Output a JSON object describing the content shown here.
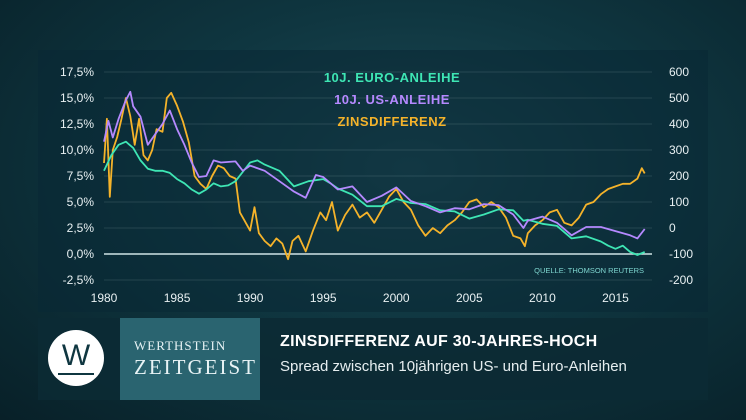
{
  "chart_data": {
    "type": "line",
    "legend": [
      {
        "label": "10J. EURO-ANLEIHE",
        "color": "#3ee6b4"
      },
      {
        "label": "10J. US-ANLEIHE",
        "color": "#b589ff"
      },
      {
        "label": "ZINSDIFFERENZ",
        "color": "#f5b32a"
      }
    ],
    "y_left": {
      "ticks": [
        "17,5%",
        "15,0%",
        "12,5%",
        "10,0%",
        "7,5%",
        "5,0%",
        "2,5%",
        "0,0%",
        "-2,5%"
      ],
      "values": [
        17.5,
        15,
        12.5,
        10,
        7.5,
        5,
        2.5,
        0,
        -2.5
      ],
      "range": [
        -2.5,
        17.5
      ]
    },
    "y_right": {
      "ticks": [
        "600",
        "500",
        "400",
        "300",
        "200",
        "100",
        "0",
        "-100",
        "-200"
      ],
      "values": [
        600,
        500,
        400,
        300,
        200,
        100,
        0,
        -100,
        -200
      ],
      "range": [
        -200,
        600
      ]
    },
    "x_ticks": [
      "1980",
      "1985",
      "1990",
      "1995",
      "2000",
      "2005",
      "2010",
      "2015"
    ],
    "x_values": [
      1980,
      1985,
      1990,
      1995,
      2000,
      2005,
      2010,
      2015
    ],
    "x_range": [
      1980,
      2017.5
    ],
    "source": "QUELLE: THOMSON REUTERS",
    "series": [
      {
        "name": "10J. EURO-ANLEIHE",
        "axis": "left",
        "color": "#3ee6b4",
        "points": [
          [
            1980,
            8.0
          ],
          [
            1980.5,
            9.5
          ],
          [
            1981,
            10.5
          ],
          [
            1981.5,
            10.8
          ],
          [
            1982,
            10.2
          ],
          [
            1982.5,
            9.0
          ],
          [
            1983,
            8.2
          ],
          [
            1983.5,
            8.0
          ],
          [
            1984,
            8.0
          ],
          [
            1984.5,
            7.8
          ],
          [
            1985,
            7.2
          ],
          [
            1985.5,
            6.8
          ],
          [
            1986,
            6.2
          ],
          [
            1986.5,
            5.8
          ],
          [
            1987,
            6.2
          ],
          [
            1987.5,
            6.8
          ],
          [
            1988,
            6.5
          ],
          [
            1988.5,
            6.6
          ],
          [
            1989,
            7.0
          ],
          [
            1990,
            8.8
          ],
          [
            1990.5,
            9.0
          ],
          [
            1991,
            8.6
          ],
          [
            1992,
            8.0
          ],
          [
            1993,
            6.5
          ],
          [
            1994,
            7.0
          ],
          [
            1995,
            7.2
          ],
          [
            1995.5,
            6.8
          ],
          [
            1996,
            6.3
          ],
          [
            1997,
            5.7
          ],
          [
            1998,
            4.6
          ],
          [
            1999,
            4.6
          ],
          [
            2000,
            5.3
          ],
          [
            2001,
            4.9
          ],
          [
            2002,
            4.8
          ],
          [
            2003,
            4.2
          ],
          [
            2004,
            4.1
          ],
          [
            2005,
            3.4
          ],
          [
            2006,
            3.8
          ],
          [
            2007,
            4.3
          ],
          [
            2008,
            4.2
          ],
          [
            2008.7,
            3.2
          ],
          [
            2009,
            3.3
          ],
          [
            2010,
            2.9
          ],
          [
            2011,
            2.7
          ],
          [
            2012,
            1.5
          ],
          [
            2013,
            1.7
          ],
          [
            2014,
            1.2
          ],
          [
            2014.5,
            0.8
          ],
          [
            2015,
            0.5
          ],
          [
            2015.5,
            0.8
          ],
          [
            2016,
            0.2
          ],
          [
            2016.5,
            -0.1
          ],
          [
            2017,
            0.2
          ]
        ]
      },
      {
        "name": "10J. US-ANLEIHE",
        "axis": "left",
        "color": "#b589ff",
        "points": [
          [
            1980,
            10.8
          ],
          [
            1980.3,
            12.8
          ],
          [
            1980.6,
            11.2
          ],
          [
            1981,
            13.0
          ],
          [
            1981.5,
            14.8
          ],
          [
            1981.8,
            15.6
          ],
          [
            1982,
            14.2
          ],
          [
            1982.5,
            13.2
          ],
          [
            1983,
            10.5
          ],
          [
            1983.5,
            11.5
          ],
          [
            1984,
            12.5
          ],
          [
            1984.5,
            13.8
          ],
          [
            1985,
            12.0
          ],
          [
            1985.5,
            10.5
          ],
          [
            1986,
            8.8
          ],
          [
            1986.5,
            7.4
          ],
          [
            1987,
            7.5
          ],
          [
            1987.5,
            9.0
          ],
          [
            1988,
            8.8
          ],
          [
            1989,
            8.9
          ],
          [
            1989.5,
            8.0
          ],
          [
            1990,
            8.5
          ],
          [
            1991,
            8.0
          ],
          [
            1992,
            7.0
          ],
          [
            1993,
            6.0
          ],
          [
            1993.8,
            5.4
          ],
          [
            1994.5,
            7.6
          ],
          [
            1995,
            7.4
          ],
          [
            1996,
            6.2
          ],
          [
            1997,
            6.5
          ],
          [
            1998,
            5.0
          ],
          [
            1999,
            5.6
          ],
          [
            2000,
            6.4
          ],
          [
            2001,
            5.1
          ],
          [
            2002,
            4.6
          ],
          [
            2003,
            4.0
          ],
          [
            2004,
            4.4
          ],
          [
            2005,
            4.3
          ],
          [
            2006,
            4.8
          ],
          [
            2007,
            4.7
          ],
          [
            2008,
            3.8
          ],
          [
            2008.7,
            2.5
          ],
          [
            2009,
            3.2
          ],
          [
            2010,
            3.6
          ],
          [
            2011,
            3.0
          ],
          [
            2012,
            1.8
          ],
          [
            2013,
            2.6
          ],
          [
            2014,
            2.6
          ],
          [
            2015,
            2.2
          ],
          [
            2016,
            1.8
          ],
          [
            2016.5,
            1.5
          ],
          [
            2017,
            2.4
          ]
        ]
      },
      {
        "name": "ZINSDIFFERENZ",
        "axis": "right",
        "color": "#f5b32a",
        "points": [
          [
            1980,
            250
          ],
          [
            1980.2,
            420
          ],
          [
            1980.4,
            120
          ],
          [
            1980.6,
            300
          ],
          [
            1980.9,
            350
          ],
          [
            1981.2,
            420
          ],
          [
            1981.5,
            500
          ],
          [
            1981.8,
            430
          ],
          [
            1982.1,
            320
          ],
          [
            1982.4,
            420
          ],
          [
            1982.7,
            280
          ],
          [
            1983,
            260
          ],
          [
            1983.3,
            300
          ],
          [
            1983.6,
            380
          ],
          [
            1984,
            370
          ],
          [
            1984.3,
            500
          ],
          [
            1984.6,
            520
          ],
          [
            1985,
            470
          ],
          [
            1985.4,
            410
          ],
          [
            1985.8,
            330
          ],
          [
            1986.2,
            200
          ],
          [
            1986.6,
            170
          ],
          [
            1987,
            150
          ],
          [
            1987.4,
            200
          ],
          [
            1987.8,
            240
          ],
          [
            1988.2,
            230
          ],
          [
            1988.6,
            200
          ],
          [
            1989,
            190
          ],
          [
            1989.3,
            60
          ],
          [
            1989.6,
            30
          ],
          [
            1990,
            -10
          ],
          [
            1990.3,
            80
          ],
          [
            1990.6,
            -20
          ],
          [
            1991,
            -50
          ],
          [
            1991.4,
            -70
          ],
          [
            1991.8,
            -40
          ],
          [
            1992.2,
            -60
          ],
          [
            1992.6,
            -120
          ],
          [
            1992.9,
            -50
          ],
          [
            1993.3,
            -30
          ],
          [
            1993.8,
            -90
          ],
          [
            1994.3,
            -10
          ],
          [
            1994.8,
            60
          ],
          [
            1995.2,
            30
          ],
          [
            1995.6,
            100
          ],
          [
            1996,
            -10
          ],
          [
            1996.5,
            50
          ],
          [
            1997,
            90
          ],
          [
            1997.5,
            40
          ],
          [
            1998,
            60
          ],
          [
            1998.5,
            20
          ],
          [
            1999,
            70
          ],
          [
            1999.5,
            120
          ],
          [
            2000,
            150
          ],
          [
            2000.5,
            100
          ],
          [
            2001,
            70
          ],
          [
            2001.5,
            10
          ],
          [
            2002,
            -30
          ],
          [
            2002.5,
            0
          ],
          [
            2003,
            -20
          ],
          [
            2003.5,
            10
          ],
          [
            2004,
            30
          ],
          [
            2004.5,
            60
          ],
          [
            2005,
            100
          ],
          [
            2005.5,
            110
          ],
          [
            2006,
            80
          ],
          [
            2006.5,
            100
          ],
          [
            2007,
            80
          ],
          [
            2007.5,
            40
          ],
          [
            2008,
            -30
          ],
          [
            2008.5,
            -40
          ],
          [
            2008.8,
            -70
          ],
          [
            2009,
            -20
          ],
          [
            2009.5,
            10
          ],
          [
            2010,
            30
          ],
          [
            2010.5,
            60
          ],
          [
            2011,
            70
          ],
          [
            2011.5,
            20
          ],
          [
            2012,
            10
          ],
          [
            2012.5,
            40
          ],
          [
            2013,
            90
          ],
          [
            2013.5,
            100
          ],
          [
            2014,
            130
          ],
          [
            2014.5,
            150
          ],
          [
            2015,
            160
          ],
          [
            2015.5,
            170
          ],
          [
            2016,
            170
          ],
          [
            2016.5,
            190
          ],
          [
            2016.8,
            230
          ],
          [
            2017,
            210
          ]
        ]
      }
    ]
  },
  "footer": {
    "logo_letter": "W",
    "brand_top": "WERTHSTEIN",
    "brand_bottom": "ZEITGEIST",
    "headline": "ZINSDIFFERENZ AUF 30-JAHRES-HOCH",
    "subline": "Spread zwischen 10jährigen US- und Euro-Anleihen"
  }
}
